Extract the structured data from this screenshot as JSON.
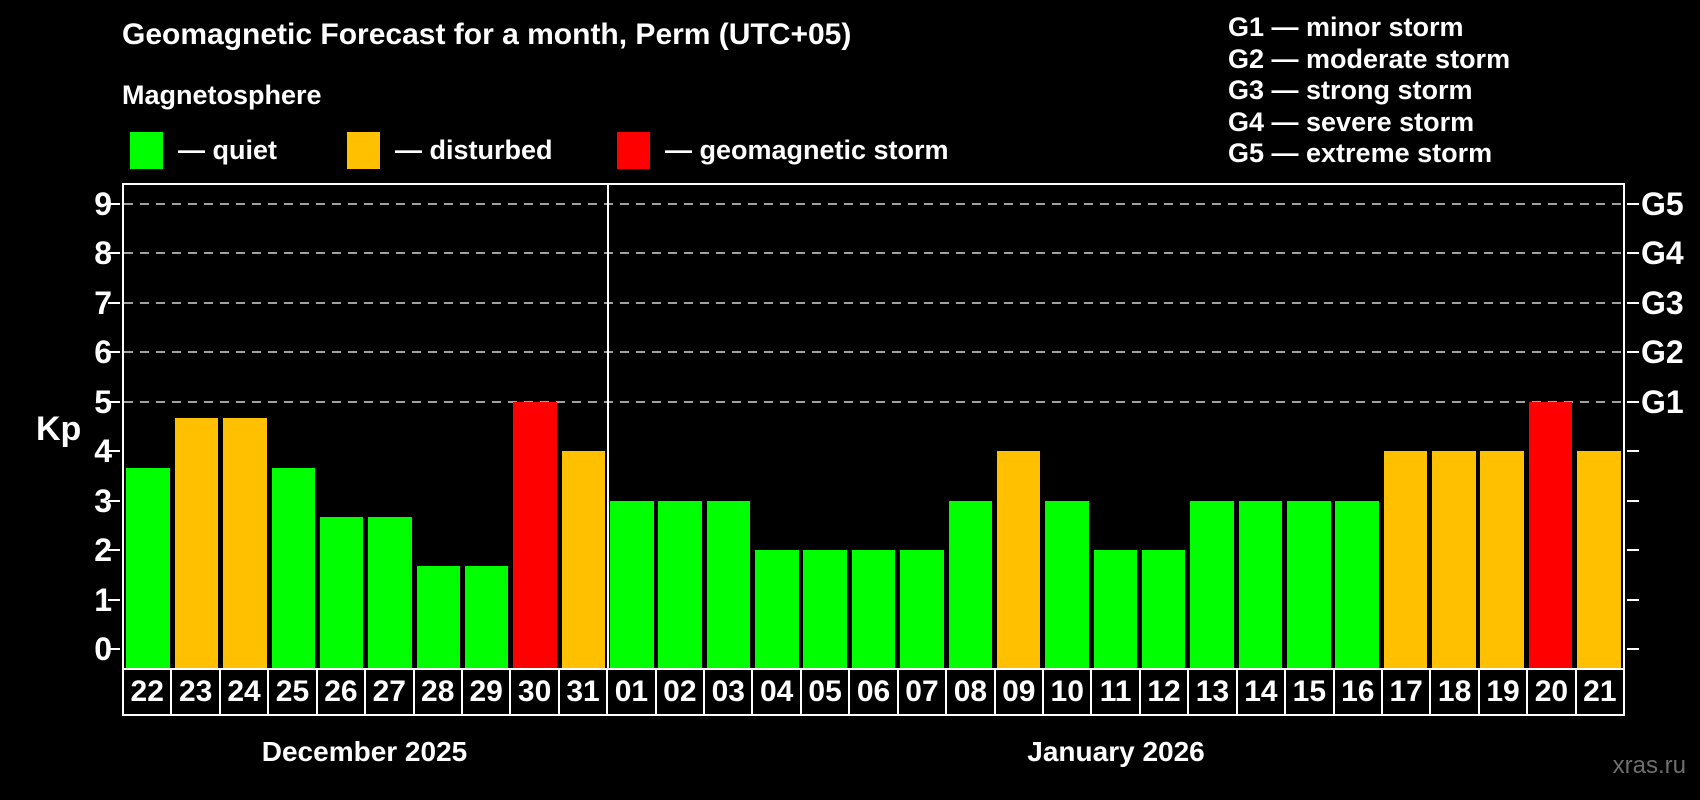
{
  "footer": {
    "watermark": "xras.ru"
  },
  "chart_data": {
    "type": "bar",
    "title": "Geomagnetic Forecast for a month, Perm (UTC+05)",
    "subtitle": "Magnetosphere",
    "ylabel": "Kp",
    "ylim": [
      0,
      9.4
    ],
    "grid": "horizontal dashed lines at Kp 5-9 only",
    "legend_position": "top-left row and top-right storm scale",
    "yticks": [
      0,
      1,
      2,
      3,
      4,
      5,
      6,
      7,
      8,
      9
    ],
    "gridlines_at": [
      5,
      6,
      7,
      8,
      9
    ],
    "right_axis": {
      "labels": [
        "G1",
        "G2",
        "G3",
        "G4",
        "G5"
      ],
      "at_values": [
        5,
        6,
        7,
        8,
        9
      ]
    },
    "legend": {
      "items": [
        {
          "status": "quiet",
          "text": "— quiet",
          "color": "#00ff00"
        },
        {
          "status": "disturbed",
          "text": "— disturbed",
          "color": "#ffc000"
        },
        {
          "status": "storm",
          "text": "— geomagnetic storm",
          "color": "#ff0000"
        }
      ]
    },
    "storm_scale_legend": [
      "G1 — minor storm",
      "G2 — moderate storm",
      "G3 — strong storm",
      "G4 — severe storm",
      "G5 — extreme storm"
    ],
    "status_colors": {
      "quiet": "#00ff00",
      "disturbed": "#ffc000",
      "storm": "#ff0000"
    },
    "categories": [
      "22",
      "23",
      "24",
      "25",
      "26",
      "27",
      "28",
      "29",
      "30",
      "31",
      "01",
      "02",
      "03",
      "04",
      "05",
      "06",
      "07",
      "08",
      "09",
      "10",
      "11",
      "12",
      "13",
      "14",
      "15",
      "16",
      "17",
      "18",
      "19",
      "20",
      "21"
    ],
    "values": [
      3.67,
      4.67,
      4.67,
      3.67,
      2.67,
      2.67,
      1.67,
      1.67,
      5,
      4,
      3,
      3,
      3,
      2,
      2,
      2,
      2,
      3,
      4,
      3,
      2,
      2,
      3,
      3,
      3,
      3,
      4,
      4,
      4,
      5,
      4
    ],
    "statuses": [
      "quiet",
      "disturbed",
      "disturbed",
      "quiet",
      "quiet",
      "quiet",
      "quiet",
      "quiet",
      "storm",
      "disturbed",
      "quiet",
      "quiet",
      "quiet",
      "quiet",
      "quiet",
      "quiet",
      "quiet",
      "quiet",
      "disturbed",
      "quiet",
      "quiet",
      "quiet",
      "quiet",
      "quiet",
      "quiet",
      "quiet",
      "disturbed",
      "disturbed",
      "disturbed",
      "storm",
      "disturbed"
    ],
    "month_split_index": 10,
    "months": [
      {
        "label": "December 2025",
        "days": 10
      },
      {
        "label": "January 2026",
        "days": 21
      }
    ]
  }
}
